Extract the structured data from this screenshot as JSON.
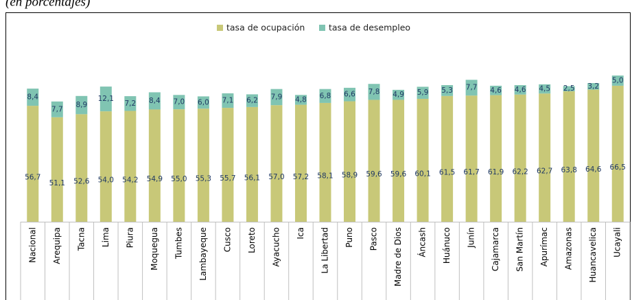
{
  "chart_data": {
    "type": "stacked_bar",
    "subtitle": "(en porcentajes)",
    "categories": [
      "Nacional",
      "Arequipa",
      "Tacna",
      "Lima",
      "Piura",
      "Moquegua",
      "Tumbes",
      "Lambayeque",
      "Cusco",
      "Loreto",
      "Ayacucho",
      "Ica",
      "La Libertad",
      "Puno",
      "Pasco",
      "Madre de Dios",
      "Áncash",
      "Huánuco",
      "Junín",
      "Cajamarca",
      "San Martín",
      "Apurímac",
      "Amazonas",
      "Huancavelica",
      "Ucayali"
    ],
    "series": [
      {
        "name": "tasa de ocupación",
        "color": "#c8c878",
        "values": [
          56.7,
          51.1,
          52.6,
          54.0,
          54.2,
          54.9,
          55.0,
          55.3,
          55.7,
          56.1,
          57.0,
          57.2,
          58.1,
          58.9,
          59.6,
          59.6,
          60.1,
          61.5,
          61.7,
          61.9,
          62.2,
          62.7,
          63.8,
          64.6,
          66.5
        ],
        "value_labels": [
          "56,7",
          "51,1",
          "52,6",
          "54,0",
          "54,2",
          "54,9",
          "55,0",
          "55,3",
          "55,7",
          "56,1",
          "57,0",
          "57,2",
          "58,1",
          "58,9",
          "59,6",
          "59,6",
          "60,1",
          "61,5",
          "61,7",
          "61,9",
          "62,2",
          "62,7",
          "63,8",
          "64,6",
          "66,5"
        ]
      },
      {
        "name": "tasa de desempleo",
        "color": "#80c4b2",
        "values": [
          8.4,
          7.7,
          8.9,
          12.1,
          7.2,
          8.4,
          7.0,
          6.0,
          7.1,
          6.2,
          7.9,
          4.8,
          6.8,
          6.6,
          7.8,
          4.9,
          5.9,
          5.3,
          7.7,
          4.6,
          4.6,
          4.5,
          2.5,
          3.2,
          5.0
        ],
        "value_labels": [
          "8,4",
          "7,7",
          "8,9",
          "12,1",
          "7,2",
          "8,4",
          "7,0",
          "6,0",
          "7,1",
          "6,2",
          "7,9",
          "4,8",
          "6,8",
          "6,6",
          "7,8",
          "4,9",
          "5,9",
          "5,3",
          "7,7",
          "4,6",
          "4,6",
          "4,5",
          "2,5",
          "3,2",
          "5,0"
        ]
      }
    ],
    "ylim": [
      0,
      95
    ],
    "legend": "top"
  }
}
